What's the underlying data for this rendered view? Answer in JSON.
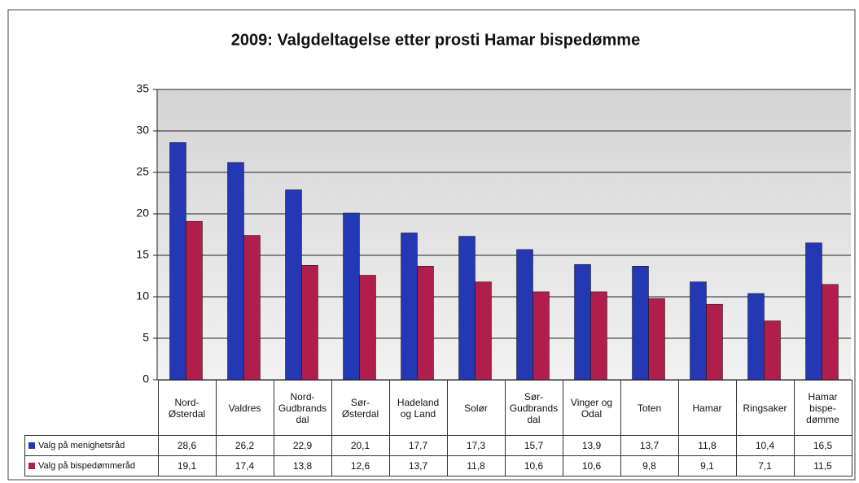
{
  "chart_data": {
    "type": "bar",
    "title": "2009: Valgdeltagelse etter prosti Hamar bispedømme",
    "categories": [
      "Nord-\nØsterdal",
      "Valdres",
      "Nord-\nGudbrands\ndal",
      "Sør-\nØsterdal",
      "Hadeland\nog Land",
      "Solør",
      "Sør-\nGudbrands\ndal",
      "Vinger og\nOdal",
      "Toten",
      "Hamar",
      "Ringsaker",
      "Hamar\nbispe-\ndømme"
    ],
    "series": [
      {
        "name": "Valg på menighetsråd",
        "color": "#2438b4",
        "values": [
          28.6,
          26.2,
          22.9,
          20.1,
          17.7,
          17.3,
          15.7,
          13.9,
          13.7,
          11.8,
          10.4,
          16.5
        ],
        "value_labels": [
          "28,6",
          "26,2",
          "22,9",
          "20,1",
          "17,7",
          "17,3",
          "15,7",
          "13,9",
          "13,7",
          "11,8",
          "10,4",
          "16,5"
        ]
      },
      {
        "name": "Valg på bispedømmeråd",
        "color": "#b01e4c",
        "values": [
          19.1,
          17.4,
          13.8,
          12.6,
          13.7,
          11.8,
          10.6,
          10.6,
          9.8,
          9.1,
          7.1,
          11.5
        ],
        "value_labels": [
          "19,1",
          "17,4",
          "13,8",
          "12,6",
          "13,7",
          "11,8",
          "10,6",
          "10,6",
          "9,8",
          "9,1",
          "7,1",
          "11,5"
        ]
      }
    ],
    "ylim": [
      0,
      35
    ],
    "yticks": [
      0,
      5,
      10,
      15,
      20,
      25,
      30,
      35
    ],
    "grid": true
  }
}
